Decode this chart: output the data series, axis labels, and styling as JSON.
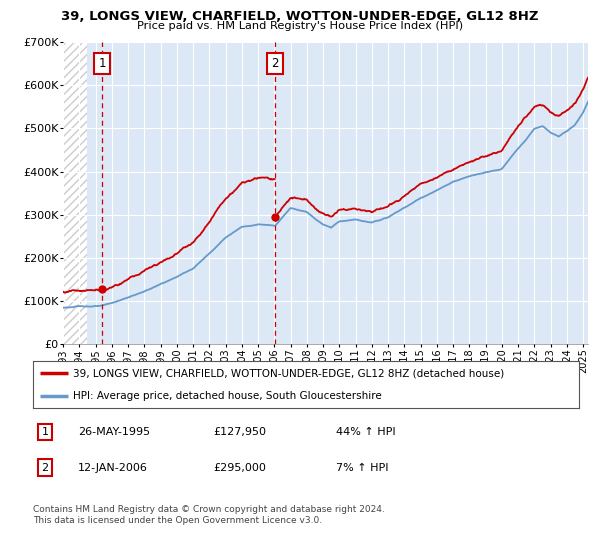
{
  "title": "39, LONGS VIEW, CHARFIELD, WOTTON-UNDER-EDGE, GL12 8HZ",
  "subtitle": "Price paid vs. HM Land Registry's House Price Index (HPI)",
  "legend_line1": "39, LONGS VIEW, CHARFIELD, WOTTON-UNDER-EDGE, GL12 8HZ (detached house)",
  "legend_line2": "HPI: Average price, detached house, South Gloucestershire",
  "ann1_date": "26-MAY-1995",
  "ann1_price": "£127,950",
  "ann1_hpi": "44% ↑ HPI",
  "ann1_x": 1995.4,
  "ann1_y": 127950,
  "ann2_date": "12-JAN-2006",
  "ann2_price": "£295,000",
  "ann2_hpi": "7% ↑ HPI",
  "ann2_x": 2006.04,
  "ann2_y": 295000,
  "footer": "Contains HM Land Registry data © Crown copyright and database right 2024.\nThis data is licensed under the Open Government Licence v3.0.",
  "price_color": "#cc0000",
  "hpi_line_color": "#6699cc",
  "bg_color": "#dce8f5",
  "hatch_color": "#cccccc",
  "grid_color": "#ffffff",
  "vline_color": "#cc0000",
  "ylim": [
    0,
    700000
  ],
  "xlim_start": 1993.0,
  "xlim_end": 2025.3,
  "hatch_end_x": 1994.5
}
